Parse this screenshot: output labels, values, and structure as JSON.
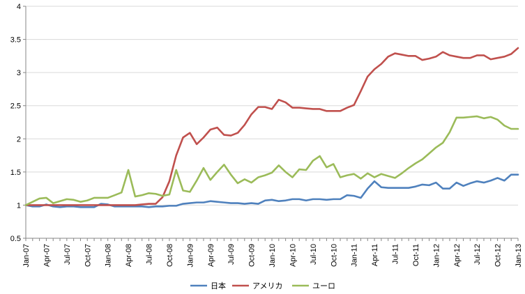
{
  "chart_data": {
    "type": "line",
    "title": "",
    "xlabel": "",
    "ylabel": "",
    "ylim": [
      0.5,
      4
    ],
    "y_ticks": [
      "0.5",
      "1",
      "1.5",
      "2",
      "2.5",
      "3",
      "3.5",
      "4"
    ],
    "x_tick_labels": [
      "Jan-07",
      "Apr-07",
      "Jul-07",
      "Oct-07",
      "Jan-08",
      "Apr-08",
      "Jul-08",
      "Oct-08",
      "Jan-09",
      "Apr-09",
      "Jul-09",
      "Oct-09",
      "Jan-10",
      "Apr-10",
      "Jul-10",
      "Oct-10",
      "Jan-11",
      "Apr-11",
      "Jul-11",
      "Oct-11",
      "Jan-12",
      "Apr-12",
      "Jul-12",
      "Oct-12",
      "Jan-13"
    ],
    "grid": "horizontal",
    "legend_position": "bottom",
    "x": [
      "2007-01",
      "2007-02",
      "2007-03",
      "2007-04",
      "2007-05",
      "2007-06",
      "2007-07",
      "2007-08",
      "2007-09",
      "2007-10",
      "2007-11",
      "2007-12",
      "2008-01",
      "2008-02",
      "2008-03",
      "2008-04",
      "2008-05",
      "2008-06",
      "2008-07",
      "2008-08",
      "2008-09",
      "2008-10",
      "2008-11",
      "2008-12",
      "2009-01",
      "2009-02",
      "2009-03",
      "2009-04",
      "2009-05",
      "2009-06",
      "2009-07",
      "2009-08",
      "2009-09",
      "2009-10",
      "2009-11",
      "2009-12",
      "2010-01",
      "2010-02",
      "2010-03",
      "2010-04",
      "2010-05",
      "2010-06",
      "2010-07",
      "2010-08",
      "2010-09",
      "2010-10",
      "2010-11",
      "2010-12",
      "2011-01",
      "2011-02",
      "2011-03",
      "2011-04",
      "2011-05",
      "2011-06",
      "2011-07",
      "2011-08",
      "2011-09",
      "2011-10",
      "2011-11",
      "2011-12",
      "2012-01",
      "2012-02",
      "2012-03",
      "2012-04",
      "2012-05",
      "2012-06",
      "2012-07",
      "2012-08",
      "2012-09",
      "2012-10",
      "2012-11",
      "2012-12",
      "2013-01"
    ],
    "series": [
      {
        "name": "日本",
        "color": "#4f81bd",
        "values": [
          1.0,
          0.98,
          0.98,
          1.01,
          0.98,
          0.97,
          0.98,
          0.98,
          0.97,
          0.97,
          0.97,
          1.02,
          1.01,
          0.98,
          0.98,
          0.98,
          0.98,
          0.98,
          0.97,
          0.98,
          0.98,
          0.99,
          0.99,
          1.02,
          1.03,
          1.04,
          1.04,
          1.06,
          1.05,
          1.04,
          1.03,
          1.03,
          1.02,
          1.03,
          1.02,
          1.07,
          1.08,
          1.06,
          1.07,
          1.09,
          1.09,
          1.07,
          1.09,
          1.09,
          1.08,
          1.09,
          1.09,
          1.15,
          1.14,
          1.11,
          1.25,
          1.36,
          1.27,
          1.26,
          1.26,
          1.26,
          1.26,
          1.28,
          1.31,
          1.3,
          1.34,
          1.25,
          1.25,
          1.34,
          1.29,
          1.33,
          1.36,
          1.34,
          1.37,
          1.41,
          1.37,
          1.46,
          1.46
        ]
      },
      {
        "name": "アメリカ",
        "color": "#c0504d",
        "values": [
          1.0,
          1.0,
          1.0,
          1.0,
          1.0,
          1.0,
          1.0,
          1.0,
          1.0,
          1.0,
          1.0,
          1.0,
          1.0,
          1.0,
          1.0,
          1.0,
          1.0,
          1.01,
          1.02,
          1.02,
          1.12,
          1.36,
          1.75,
          2.02,
          2.09,
          1.92,
          2.02,
          2.14,
          2.17,
          2.06,
          2.05,
          2.09,
          2.21,
          2.37,
          2.48,
          2.48,
          2.45,
          2.59,
          2.55,
          2.47,
          2.47,
          2.46,
          2.45,
          2.45,
          2.42,
          2.42,
          2.42,
          2.47,
          2.51,
          2.72,
          2.94,
          3.05,
          3.13,
          3.24,
          3.29,
          3.27,
          3.25,
          3.25,
          3.19,
          3.21,
          3.24,
          3.31,
          3.26,
          3.24,
          3.22,
          3.22,
          3.26,
          3.26,
          3.2,
          3.22,
          3.24,
          3.28,
          3.37
        ]
      },
      {
        "name": "ユーロ",
        "color": "#9bbb59",
        "values": [
          1.0,
          1.05,
          1.1,
          1.11,
          1.03,
          1.06,
          1.09,
          1.08,
          1.05,
          1.07,
          1.11,
          1.11,
          1.11,
          1.15,
          1.19,
          1.53,
          1.13,
          1.15,
          1.18,
          1.17,
          1.14,
          1.16,
          1.53,
          1.22,
          1.2,
          1.37,
          1.56,
          1.38,
          1.5,
          1.61,
          1.46,
          1.33,
          1.39,
          1.34,
          1.42,
          1.45,
          1.49,
          1.6,
          1.5,
          1.42,
          1.54,
          1.53,
          1.67,
          1.74,
          1.57,
          1.62,
          1.42,
          1.45,
          1.47,
          1.4,
          1.48,
          1.42,
          1.47,
          1.44,
          1.41,
          1.48,
          1.56,
          1.63,
          1.69,
          1.78,
          1.87,
          1.94,
          2.1,
          2.32,
          2.32,
          2.33,
          2.34,
          2.31,
          2.33,
          2.29,
          2.2,
          2.15,
          2.15
        ]
      }
    ]
  }
}
